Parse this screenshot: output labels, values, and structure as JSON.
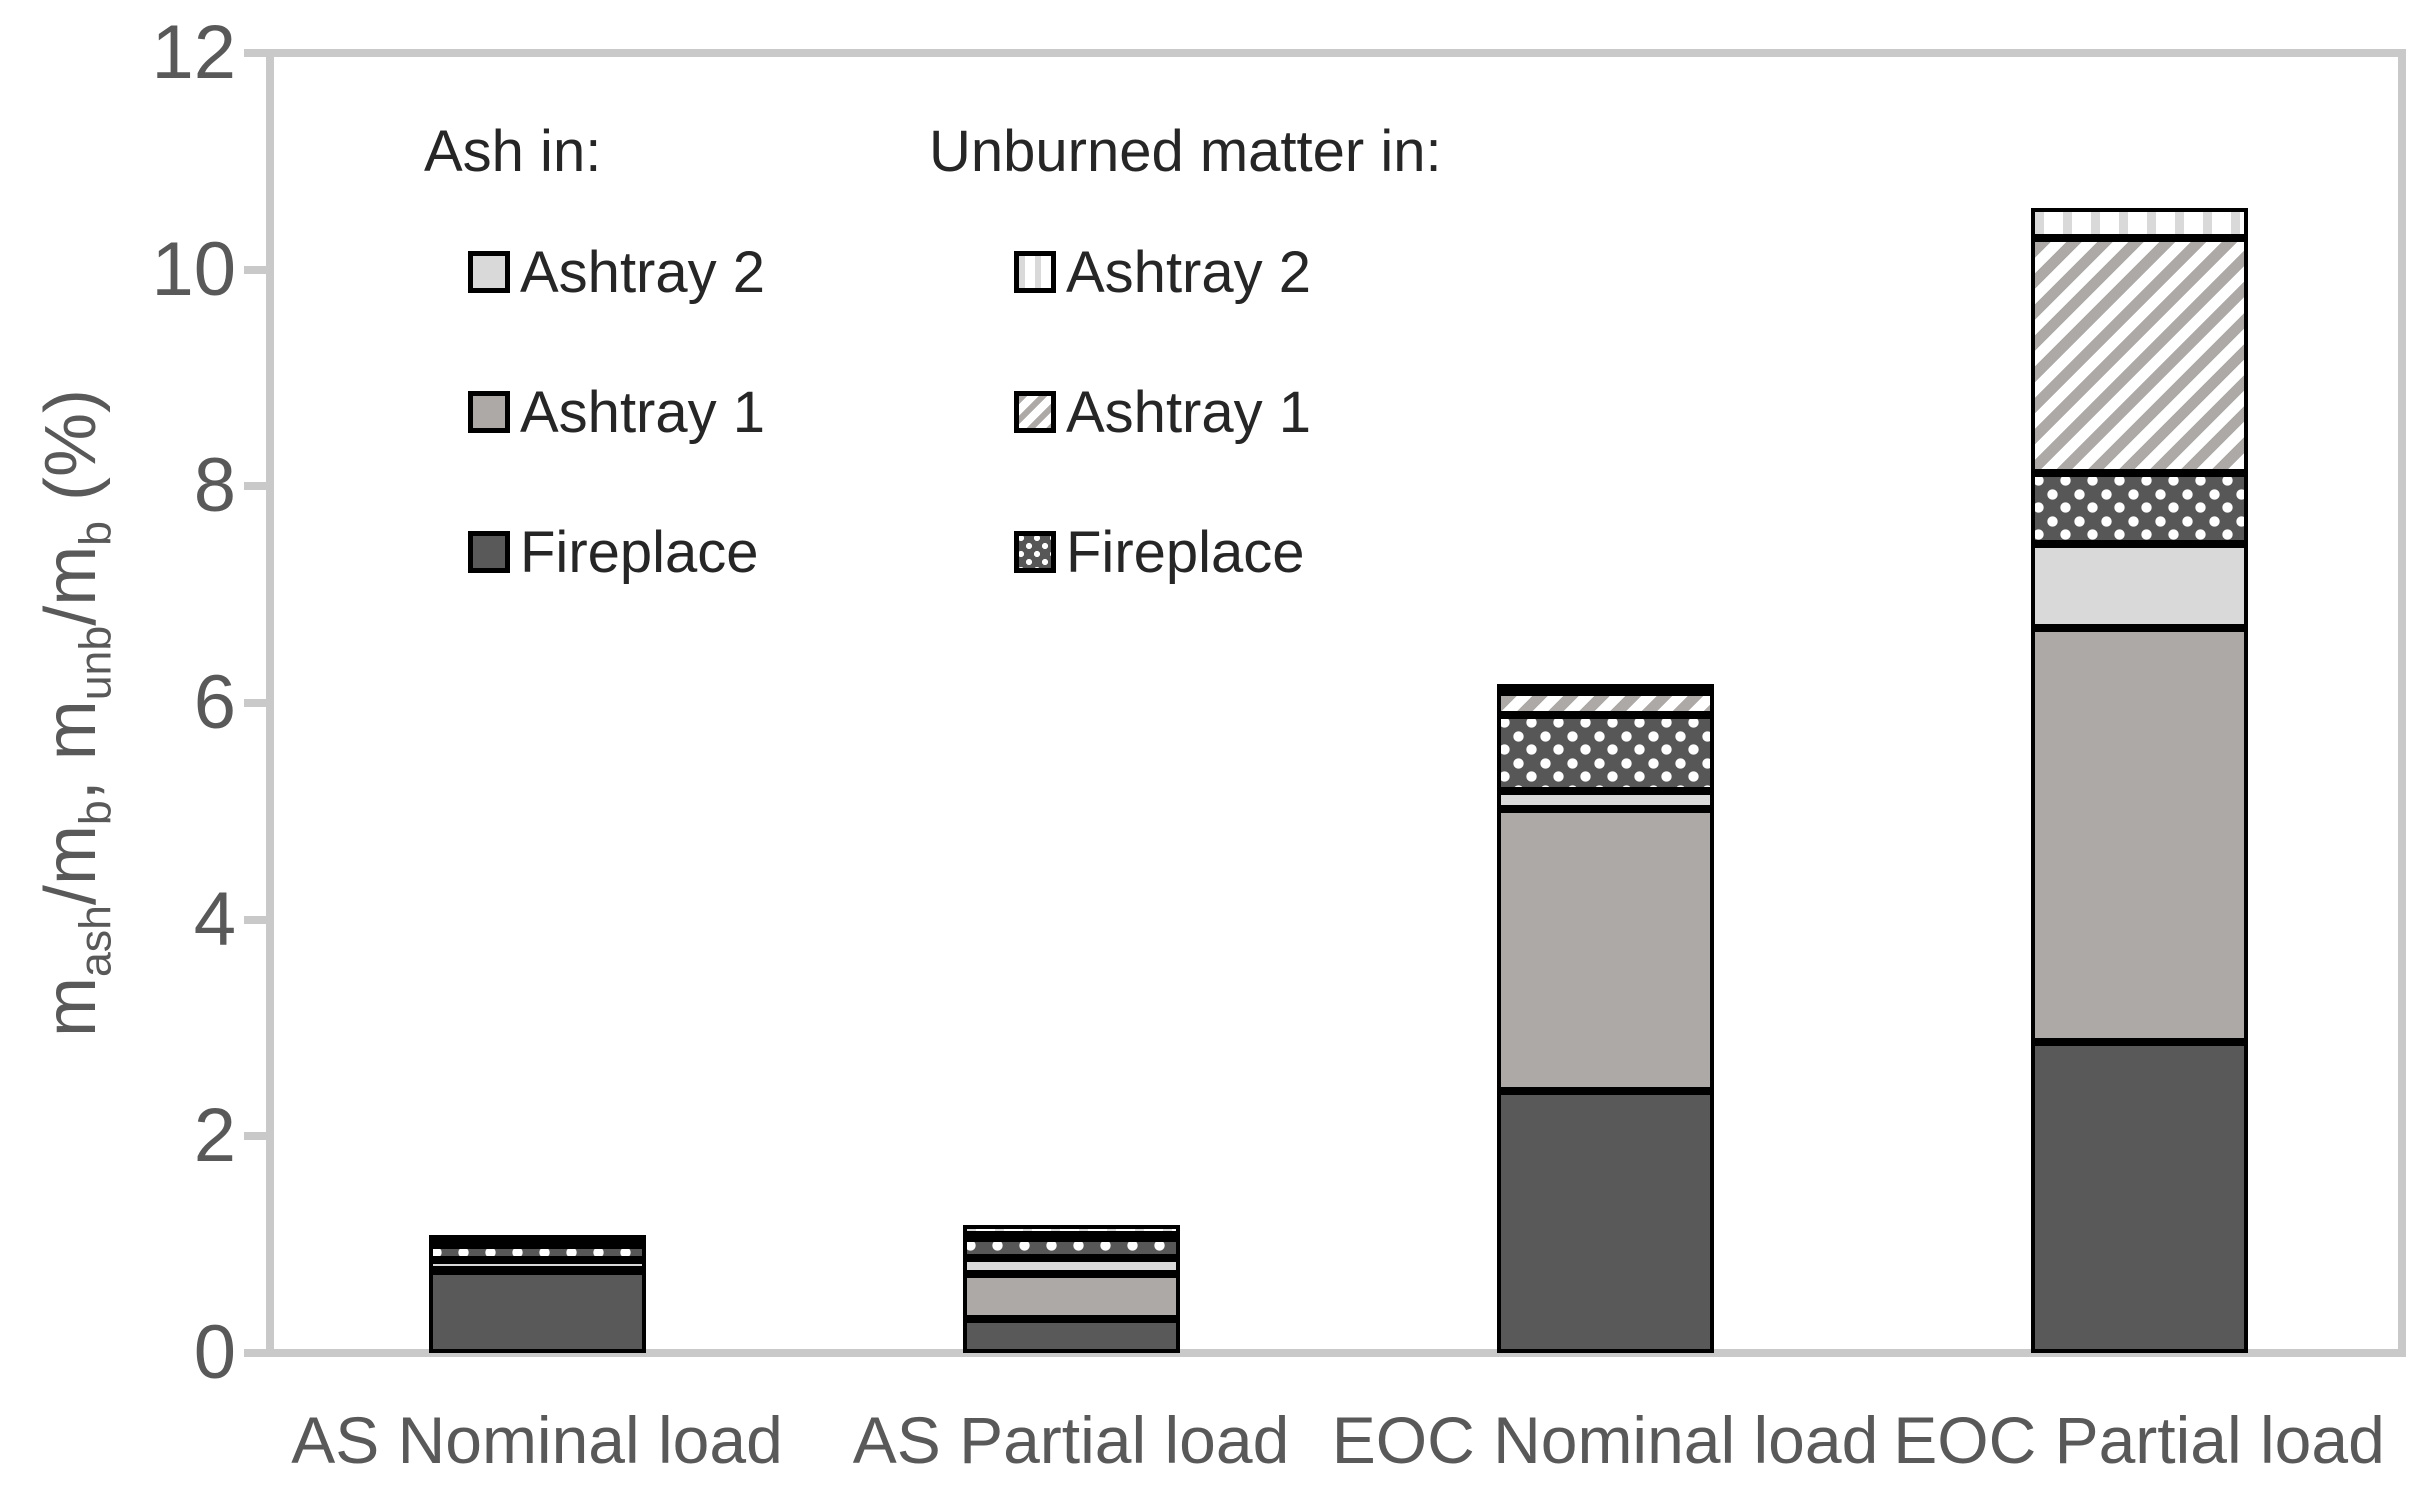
{
  "chart_data": {
    "type": "bar",
    "stacked": true,
    "ylabel_text": "m_ash/m_b, m_unb/m_b (%)",
    "ylabel_parts": [
      {
        "t": "m"
      },
      {
        "t": "ash",
        "sub": true
      },
      {
        "t": "/m"
      },
      {
        "t": "b",
        "sub": true
      },
      {
        "t": ", m"
      },
      {
        "t": "unb",
        "sub": true
      },
      {
        "t": "/m"
      },
      {
        "t": "b",
        "sub": true
      },
      {
        "t": " (%)"
      }
    ],
    "ylim": [
      0,
      12
    ],
    "yticks": [
      0,
      2,
      4,
      6,
      8,
      10,
      12
    ],
    "grid": false,
    "categories": [
      "AS Nominal load",
      "AS Partial load",
      "EOC Nominal load",
      "EOC Partial load"
    ],
    "series": [
      {
        "name": "Ash in: Fireplace",
        "key": "ash_fireplace",
        "values": [
          0.76,
          0.31,
          2.42,
          2.87
        ]
      },
      {
        "name": "Ash in: Ashtray 1",
        "key": "ash_ashtray1",
        "values": [
          0.01,
          0.42,
          2.6,
          3.82
        ]
      },
      {
        "name": "Ash in: Ashtray 2",
        "key": "ash_ashtray2",
        "values": [
          0.09,
          0.15,
          0.17,
          0.78
        ]
      },
      {
        "name": "Unburned matter in: Fireplace",
        "key": "unb_fireplace",
        "values": [
          0.14,
          0.18,
          0.7,
          0.65
        ]
      },
      {
        "name": "Unburned matter in: Ashtray 1",
        "key": "unb_ashtray1",
        "values": [
          0.02,
          0.03,
          0.21,
          2.17
        ]
      },
      {
        "name": "Unburned matter in: Ashtray 2",
        "key": "unb_ashtray2",
        "values": [
          0.02,
          0.09,
          0.06,
          0.28
        ]
      }
    ],
    "totals": [
      1.04,
      1.18,
      6.16,
      10.57
    ],
    "legend": {
      "position": "top-left-inside",
      "col1_header": "Ash in:",
      "col2_header": "Unburned matter in:",
      "col1_items": [
        {
          "label": "Ashtray 2",
          "key": "ash_ashtray2"
        },
        {
          "label": "Ashtray 1",
          "key": "ash_ashtray1"
        },
        {
          "label": "Fireplace",
          "key": "ash_fireplace"
        }
      ],
      "col2_items": [
        {
          "label": "Ashtray 2",
          "key": "unb_ashtray2"
        },
        {
          "label": "Ashtray 1",
          "key": "unb_ashtray1"
        },
        {
          "label": "Fireplace",
          "key": "unb_fireplace"
        }
      ]
    },
    "colors": {
      "fireplace_ash": "#595959",
      "ashtray1_ash": "#aca9a7",
      "ashtray2_ash": "#d9d9d9",
      "segment_border": "#000000",
      "axis": "#c9c9c9",
      "axis_text": "#595959",
      "legend_text": "#262626",
      "background": "#ffffff"
    }
  }
}
